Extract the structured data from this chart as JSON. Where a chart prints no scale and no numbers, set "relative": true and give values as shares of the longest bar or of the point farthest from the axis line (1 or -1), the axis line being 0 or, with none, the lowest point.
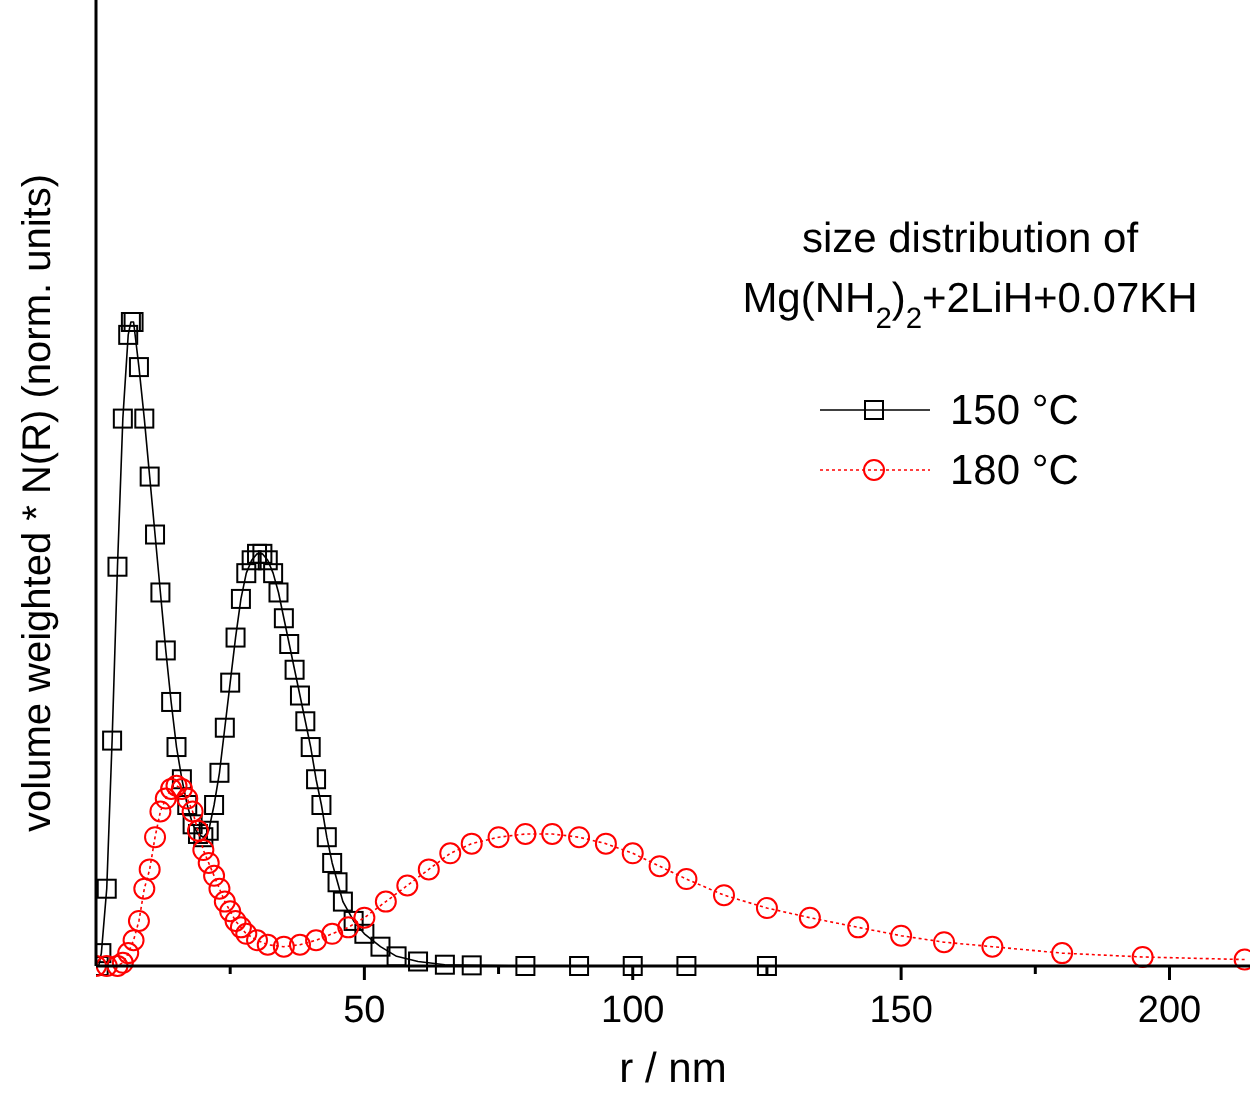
{
  "chart_data": {
    "type": "line",
    "xlabel": "r / nm",
    "ylabel": "volume weighted * N(R) (norm. units)",
    "relative": true,
    "xlim": [
      0,
      215
    ],
    "xticks": [
      {
        "value": 25,
        "label": null
      },
      50,
      {
        "value": 75,
        "label": null
      },
      100,
      {
        "value": 125,
        "label": null
      },
      150,
      {
        "value": 175,
        "label": null
      },
      200
    ],
    "tick_labels": "x",
    "grid": false,
    "legend": "top right",
    "annotations": [
      "size distribution of",
      "Mg(NH$_{2}$)$_{2}$+2LiH+0.07KH"
    ],
    "series": [
      {
        "name": "150 °C",
        "color": "#000000",
        "marker": "square",
        "line_style": "solid",
        "x": [
          0.5,
          1,
          2,
          3,
          4,
          5,
          6,
          6.5,
          7,
          8,
          9,
          10,
          11,
          12,
          13,
          14,
          15,
          16,
          17,
          18,
          19,
          20,
          21,
          22,
          23,
          24,
          25,
          26,
          27,
          28,
          29,
          30,
          31,
          32,
          33,
          34,
          35,
          36,
          37,
          38,
          39,
          40,
          41,
          42,
          43,
          44,
          45,
          46,
          48,
          50,
          53,
          56,
          60,
          65,
          70,
          80,
          90,
          100,
          110,
          125
        ],
        "values": [
          0,
          0.02,
          0.12,
          0.35,
          0.62,
          0.85,
          0.98,
          1,
          1,
          0.93,
          0.85,
          0.76,
          0.67,
          0.58,
          0.49,
          0.41,
          0.34,
          0.29,
          0.25,
          0.22,
          0.205,
          0.2,
          0.21,
          0.25,
          0.3,
          0.37,
          0.44,
          0.51,
          0.57,
          0.61,
          0.63,
          0.64,
          0.64,
          0.63,
          0.61,
          0.58,
          0.54,
          0.5,
          0.46,
          0.42,
          0.38,
          0.34,
          0.29,
          0.25,
          0.2,
          0.16,
          0.13,
          0.1,
          0.07,
          0.05,
          0.03,
          0.015,
          0.007,
          0.002,
          0.001,
          0,
          0,
          0,
          0,
          0
        ]
      },
      {
        "name": "180 °C",
        "color": "#ff0000",
        "marker": "circle",
        "line_style": "dotted",
        "x": [
          0,
          2,
          4,
          5,
          6,
          7,
          8,
          9,
          10,
          11,
          12,
          13,
          14,
          15,
          16,
          17,
          18,
          19,
          20,
          21,
          22,
          23,
          24,
          25,
          26,
          27,
          28,
          30,
          32,
          35,
          38,
          41,
          44,
          47,
          50,
          54,
          58,
          62,
          66,
          70,
          75,
          80,
          85,
          90,
          95,
          100,
          105,
          110,
          117,
          125,
          133,
          142,
          150,
          158,
          167,
          180,
          195,
          214
        ],
        "values": [
          0,
          0,
          0,
          0.005,
          0.02,
          0.04,
          0.07,
          0.12,
          0.15,
          0.2,
          0.24,
          0.26,
          0.275,
          0.28,
          0.275,
          0.26,
          0.24,
          0.21,
          0.18,
          0.16,
          0.14,
          0.12,
          0.1,
          0.085,
          0.07,
          0.06,
          0.05,
          0.04,
          0.033,
          0.03,
          0.033,
          0.04,
          0.05,
          0.06,
          0.075,
          0.1,
          0.125,
          0.15,
          0.175,
          0.19,
          0.2,
          0.205,
          0.205,
          0.2,
          0.19,
          0.175,
          0.155,
          0.135,
          0.11,
          0.09,
          0.075,
          0.06,
          0.047,
          0.037,
          0.03,
          0.02,
          0.014,
          0.01
        ]
      }
    ]
  }
}
